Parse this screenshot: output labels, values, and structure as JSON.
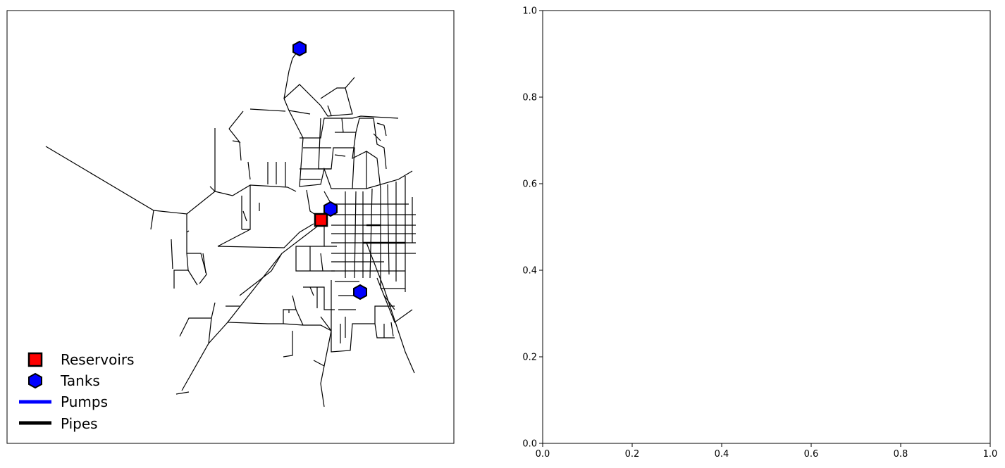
{
  "network_panel": {
    "legend": {
      "reservoirs": "Reservoirs",
      "tanks": "Tanks",
      "pumps": "Pumps",
      "pipes": "Pipes"
    },
    "colors": {
      "reservoir_fill": "#ff0000",
      "tank_fill": "#0000ff",
      "pump_line": "#0000ff",
      "pipe_line": "#000000"
    }
  },
  "chart_data": {
    "type": "scatter",
    "title": "",
    "xlabel": "",
    "ylabel": "",
    "xlim": [
      0,
      1
    ],
    "ylim": [
      0,
      1
    ],
    "x_ticks": [
      "0.0",
      "0.2",
      "0.4",
      "0.6",
      "0.8",
      "1.0"
    ],
    "y_ticks": [
      "0.0",
      "0.2",
      "0.4",
      "0.6",
      "0.8",
      "1.0"
    ],
    "series": []
  }
}
